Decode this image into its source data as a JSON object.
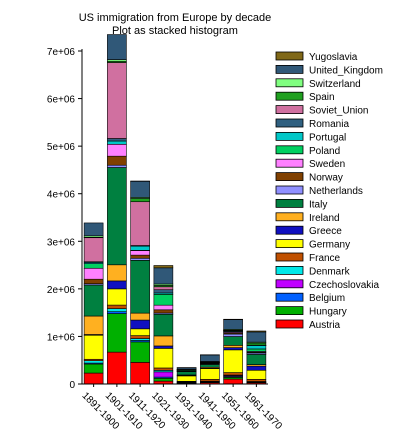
{
  "chart_data": {
    "type": "bar",
    "stacked": true,
    "title": "US immigration from Europe by decade",
    "subtitle": "Plot as stacked histogram",
    "xlabel": "",
    "ylabel": "",
    "ylim": [
      0,
      7000000
    ],
    "yticks": [
      0,
      1000000,
      2000000,
      3000000,
      4000000,
      5000000,
      6000000,
      7000000
    ],
    "ytick_labels": [
      "0",
      "1e+06",
      "2e+06",
      "3e+06",
      "4e+06",
      "5e+06",
      "6e+06",
      "7e+06"
    ],
    "grid": false,
    "legend_position": "right",
    "categories": [
      "1891-1900",
      "1901-1910",
      "1911-1920",
      "1921-1930",
      "1931-1940",
      "1941-1950",
      "1951-1960",
      "1961-1970"
    ],
    "series": [
      {
        "name": "Austria",
        "color": "#ff0000",
        "values": [
          230000,
          670000,
          455000,
          60000,
          11000,
          28000,
          104000,
          26000
        ]
      },
      {
        "name": "Hungary",
        "color": "#00b000",
        "values": [
          190000,
          810000,
          430000,
          60000,
          8000,
          5000,
          36000,
          6000
        ]
      },
      {
        "name": "Belgium",
        "color": "#0060ff",
        "values": [
          20000,
          40000,
          30000,
          25000,
          7000,
          13000,
          19000,
          9000
        ]
      },
      {
        "name": "Czechoslovakia",
        "color": "#c000ff",
        "values": [
          0,
          0,
          0,
          110000,
          15000,
          8000,
          19000,
          3000
        ]
      },
      {
        "name": "Denmark",
        "color": "#00e8e8",
        "values": [
          50000,
          65000,
          41000,
          32000,
          2600,
          5400,
          10000,
          9000
        ]
      },
      {
        "name": "France",
        "color": "#c05000",
        "values": [
          30000,
          74000,
          61000,
          50000,
          13000,
          38000,
          52000,
          45000
        ]
      },
      {
        "name": "Germany",
        "color": "#ffff00",
        "values": [
          505000,
          341000,
          143000,
          412000,
          114000,
          227000,
          478000,
          191000
        ]
      },
      {
        "name": "Greece",
        "color": "#1010c0",
        "values": [
          16000,
          167000,
          184000,
          51000,
          9000,
          8000,
          47000,
          86000
        ]
      },
      {
        "name": "Ireland",
        "color": "#ffb020",
        "values": [
          388000,
          339000,
          146000,
          211000,
          11000,
          20000,
          48000,
          33000
        ]
      },
      {
        "name": "Italy",
        "color": "#008040",
        "values": [
          651000,
          2045000,
          1110000,
          455000,
          68000,
          58000,
          185000,
          214000
        ]
      },
      {
        "name": "Netherlands",
        "color": "#9090ff",
        "values": [
          27000,
          48000,
          43000,
          26000,
          7000,
          14000,
          52000,
          30000
        ]
      },
      {
        "name": "Norway",
        "color": "#804000",
        "values": [
          96000,
          190000,
          66000,
          68000,
          4000,
          10000,
          23000,
          15000
        ]
      },
      {
        "name": "Sweden",
        "color": "#ff80ff",
        "values": [
          230000,
          250000,
          95000,
          97000,
          3900,
          11000,
          21000,
          17000
        ]
      },
      {
        "name": "Poland",
        "color": "#00d060",
        "values": [
          97000,
          0,
          4800,
          228000,
          17000,
          7600,
          10000,
          53000
        ]
      },
      {
        "name": "Portugal",
        "color": "#00c8c8",
        "values": [
          27000,
          69000,
          89000,
          29000,
          3300,
          7400,
          19000,
          76000
        ]
      },
      {
        "name": "Romania",
        "color": "#306080",
        "values": [
          13000,
          53000,
          13000,
          68000,
          3900,
          1100,
          1000,
          2500
        ]
      },
      {
        "name": "Soviet_Union",
        "color": "#d070a0",
        "values": [
          505000,
          1597000,
          921000,
          62000,
          1400,
          600,
          500,
          2000
        ]
      },
      {
        "name": "Spain",
        "color": "#20a020",
        "values": [
          8700,
          27000,
          68000,
          28000,
          3300,
          2100,
          7900,
          44000
        ]
      },
      {
        "name": "Switzerland",
        "color": "#80ff80",
        "values": [
          31000,
          35000,
          23000,
          30000,
          5500,
          10000,
          17000,
          19000
        ]
      },
      {
        "name": "United_Kingdom",
        "color": "#305878",
        "values": [
          271000,
          526000,
          341000,
          340000,
          32000,
          139000,
          203000,
          214000
        ]
      },
      {
        "name": "Yugoslavia",
        "color": "#806818",
        "values": [
          0,
          0,
          1900,
          49000,
          6000,
          1600,
          9000,
          20000
        ]
      }
    ]
  }
}
